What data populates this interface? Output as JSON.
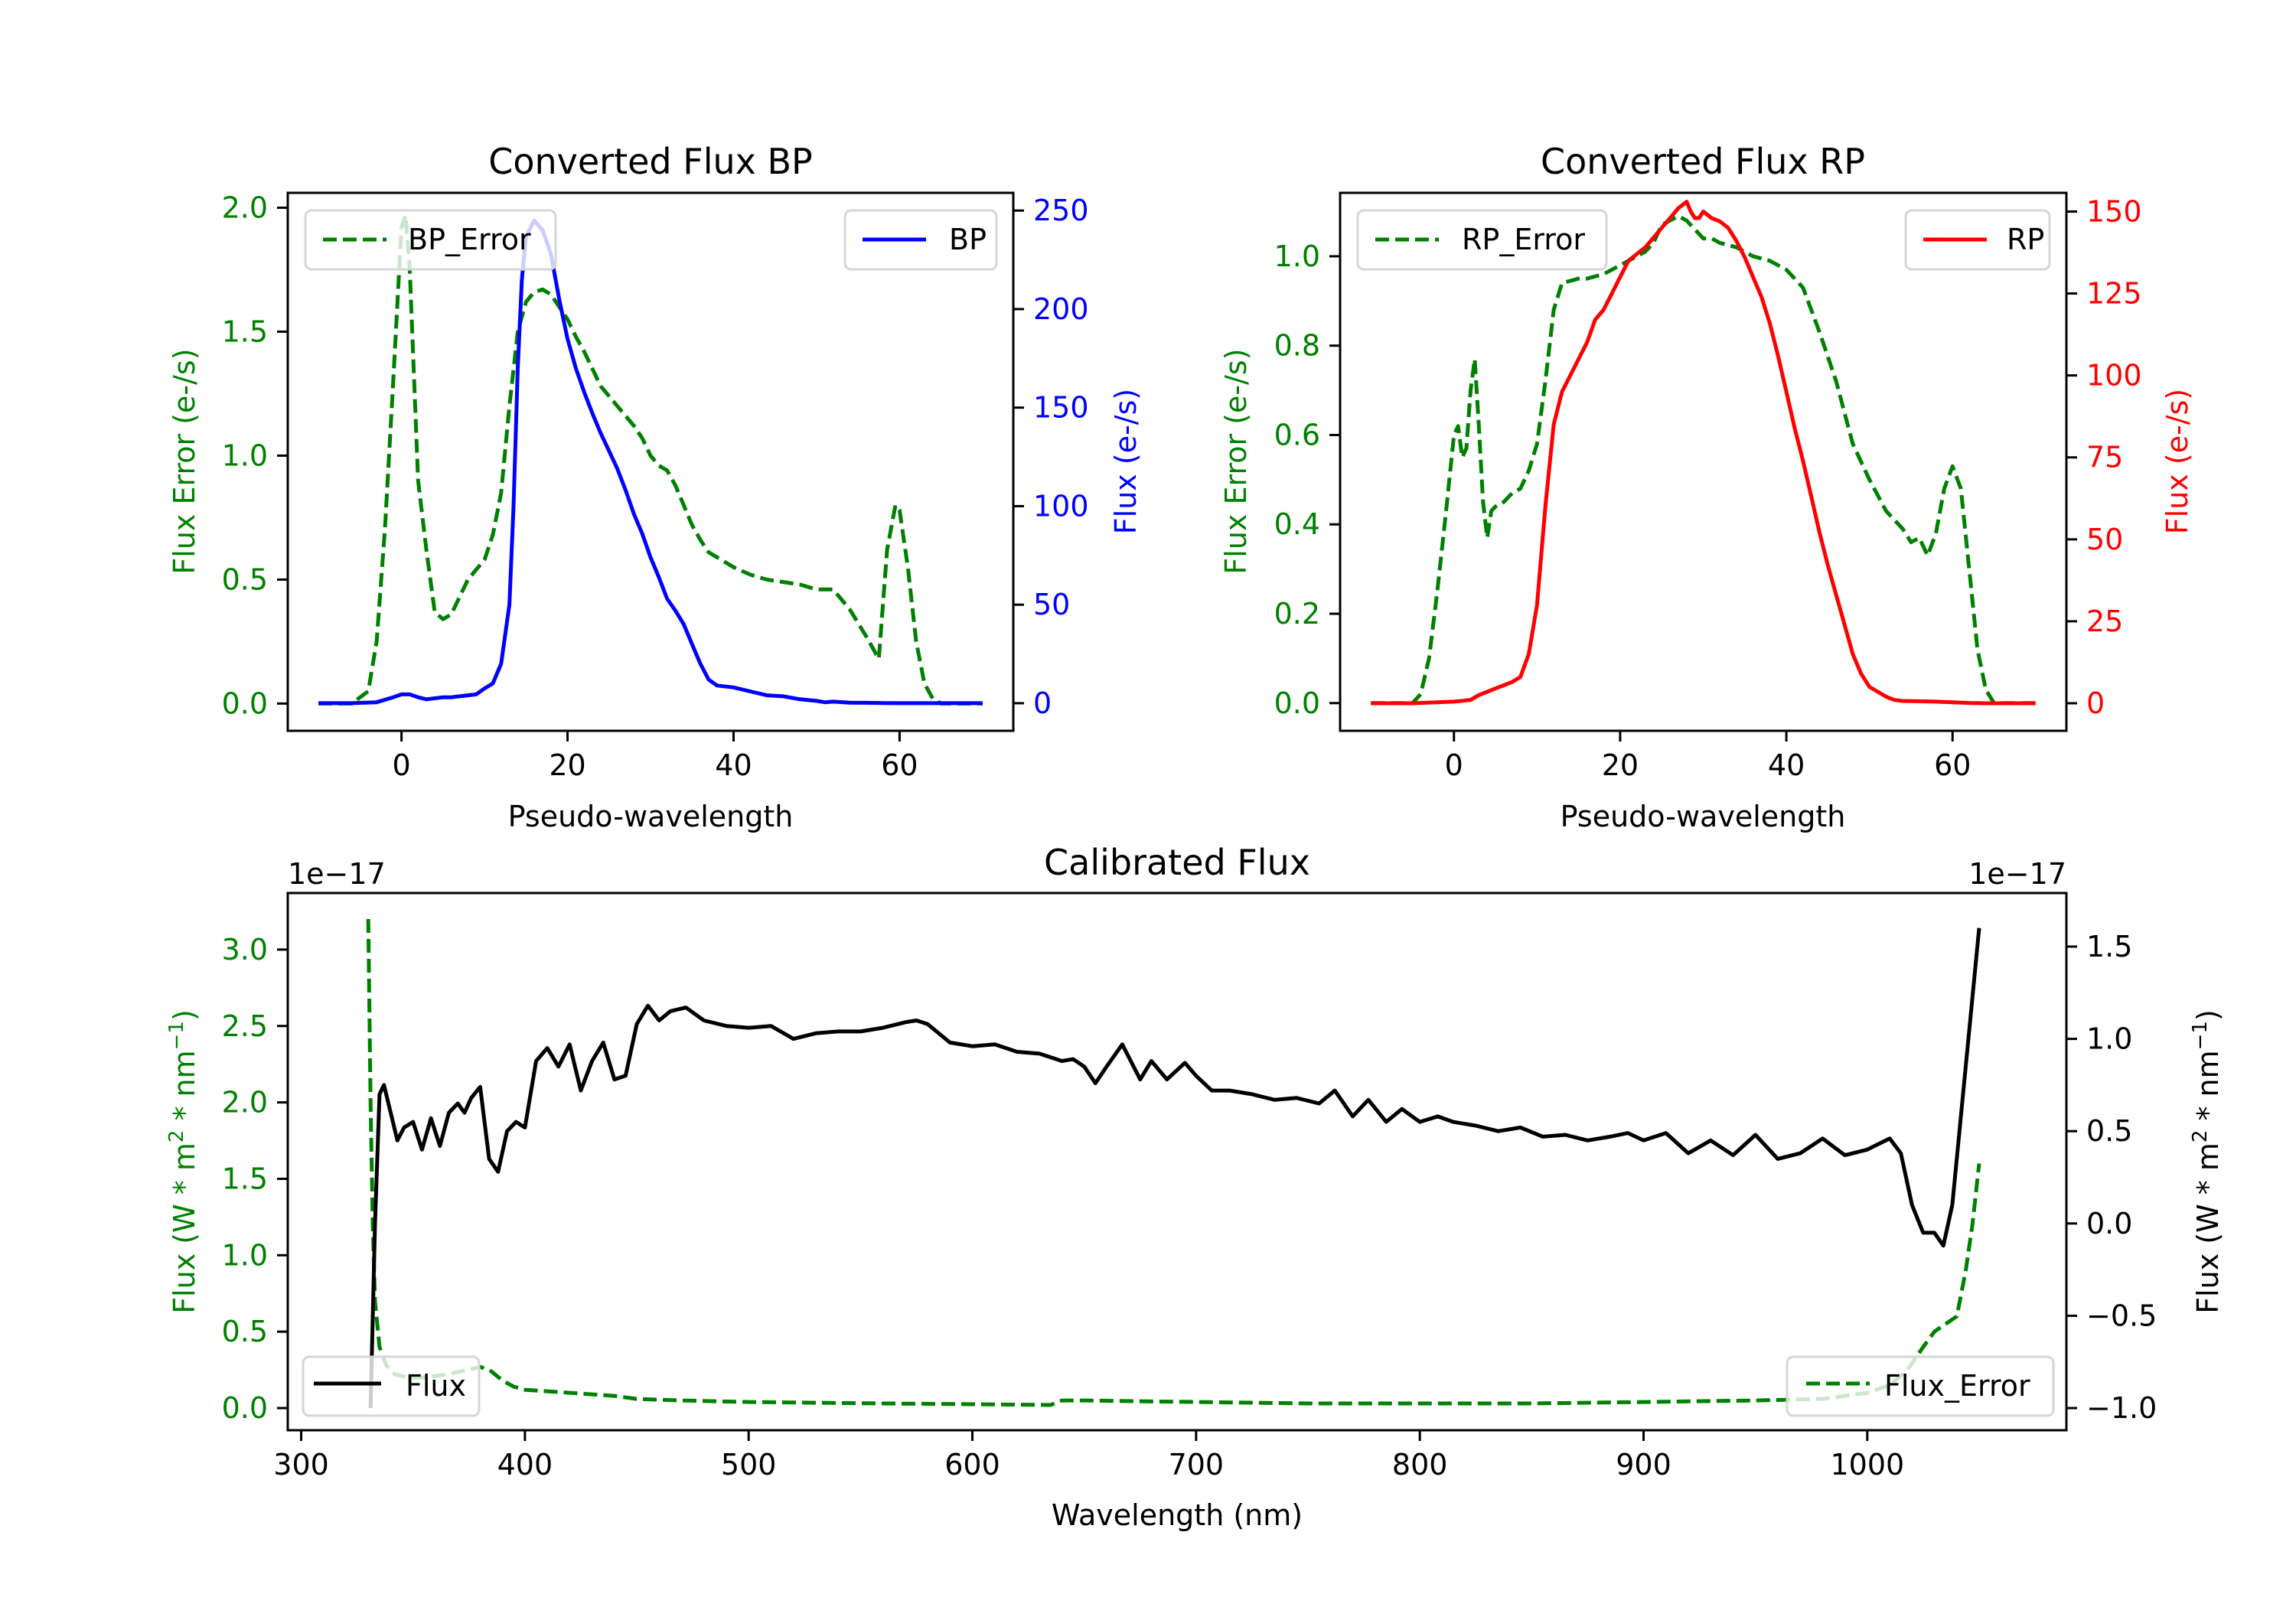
{
  "chart_data": [
    {
      "id": "bp",
      "type": "line",
      "title": "Converted Flux BP",
      "xlabel": "Pseudo-wavelength",
      "ylabel_left": "Flux Error (e-/s)",
      "ylabel_right": "Flux (e-/s)",
      "xlim": [
        -13.7,
        73.7
      ],
      "ylim_left": [
        -0.11,
        2.06
      ],
      "ylim_right": [
        -14,
        259
      ],
      "xticks": [
        0,
        20,
        40,
        60
      ],
      "xtick_labels": [
        "0",
        "20",
        "40",
        "60"
      ],
      "yticks_left": [
        0.0,
        0.5,
        1.0,
        1.5,
        2.0
      ],
      "ytick_labels_left": [
        "0.0",
        "0.5",
        "1.0",
        "1.5",
        "2.0"
      ],
      "yticks_right": [
        0,
        50,
        100,
        150,
        200,
        250
      ],
      "ytick_labels_right": [
        "0",
        "50",
        "100",
        "150",
        "200",
        "250"
      ],
      "left_axis_color": "#008000",
      "right_axis_color": "#0000ff",
      "legend_left": {
        "label": "BP_Error",
        "position": "upper-left"
      },
      "legend_right": {
        "label": "BP",
        "position": "upper-right"
      },
      "series": [
        {
          "name": "BP_Error",
          "axis": "left",
          "color": "#008000",
          "style": "dashed",
          "x": [
            -10,
            -6,
            -4,
            -3,
            -2,
            -1,
            0,
            0.5,
            1,
            2,
            3,
            4,
            5,
            6,
            7,
            8,
            9,
            10,
            11,
            12,
            13,
            14,
            15,
            16,
            17,
            18,
            19,
            20,
            21,
            22,
            23,
            24,
            25,
            26,
            27,
            28,
            29,
            30,
            31,
            32,
            33,
            34,
            35,
            36,
            37,
            38,
            40,
            42,
            44,
            46,
            48,
            50,
            52,
            54,
            56,
            57.5,
            58.5,
            59.5,
            60,
            61,
            62,
            63,
            64,
            65,
            67,
            70
          ],
          "y": [
            0.0,
            0.0,
            0.05,
            0.25,
            0.7,
            1.3,
            1.92,
            1.97,
            1.75,
            0.9,
            0.62,
            0.37,
            0.34,
            0.36,
            0.43,
            0.5,
            0.54,
            0.58,
            0.68,
            0.85,
            1.2,
            1.5,
            1.62,
            1.66,
            1.67,
            1.65,
            1.6,
            1.55,
            1.48,
            1.42,
            1.35,
            1.28,
            1.24,
            1.2,
            1.16,
            1.12,
            1.07,
            1.0,
            0.96,
            0.94,
            0.88,
            0.8,
            0.72,
            0.66,
            0.61,
            0.59,
            0.55,
            0.52,
            0.5,
            0.49,
            0.48,
            0.46,
            0.46,
            0.38,
            0.27,
            0.18,
            0.62,
            0.8,
            0.78,
            0.55,
            0.25,
            0.08,
            0.02,
            0.0,
            0.0,
            0.0
          ]
        },
        {
          "name": "BP",
          "axis": "right",
          "color": "#0000ff",
          "style": "solid",
          "x": [
            -10,
            -6,
            -3,
            -1,
            0,
            1,
            2,
            3,
            4,
            5,
            6,
            7,
            8,
            9,
            10,
            11,
            12,
            13,
            13.5,
            14,
            14.5,
            15,
            16,
            17,
            18,
            19,
            20,
            21,
            22,
            23,
            24,
            25,
            26,
            27,
            28,
            29,
            30,
            31,
            32,
            33,
            34,
            35,
            36,
            37,
            38,
            40,
            42,
            44,
            46,
            48,
            50,
            51,
            52,
            54,
            56,
            58,
            60,
            62,
            64,
            66,
            70
          ],
          "y": [
            0,
            0,
            0.5,
            3,
            4.5,
            4.5,
            3,
            2,
            2.5,
            3,
            3,
            3.5,
            4,
            4.5,
            7.5,
            10,
            20,
            50,
            100,
            170,
            215,
            237,
            245,
            240,
            228,
            205,
            185,
            170,
            158,
            147,
            137,
            128,
            119,
            108,
            96,
            86,
            74,
            64,
            53,
            47,
            40,
            30,
            20,
            12,
            9,
            8,
            6,
            4,
            3.5,
            2,
            1.2,
            0.5,
            0.8,
            0.3,
            0.2,
            0.1,
            0,
            0,
            0,
            0,
            0
          ]
        }
      ]
    },
    {
      "id": "rp",
      "type": "line",
      "title": "Converted Flux RP",
      "xlabel": "Pseudo-wavelength",
      "ylabel_left": "Flux Error (e-/s)",
      "ylabel_right": "Flux (e-/s)",
      "xlim": [
        -13.7,
        73.7
      ],
      "ylim_left": [
        -0.062,
        1.142
      ],
      "ylim_right": [
        -8.4,
        155.7
      ],
      "xticks": [
        0,
        20,
        40,
        60
      ],
      "xtick_labels": [
        "0",
        "20",
        "40",
        "60"
      ],
      "yticks_left": [
        0.0,
        0.2,
        0.4,
        0.6,
        0.8,
        1.0
      ],
      "ytick_labels_left": [
        "0.0",
        "0.2",
        "0.4",
        "0.6",
        "0.8",
        "1.0"
      ],
      "yticks_right": [
        0,
        25,
        50,
        75,
        100,
        125,
        150
      ],
      "ytick_labels_right": [
        "0",
        "25",
        "50",
        "75",
        "100",
        "125",
        "150"
      ],
      "left_axis_color": "#008000",
      "right_axis_color": "#ff0000",
      "legend_left": {
        "label": "RP_Error",
        "position": "upper-left"
      },
      "legend_right": {
        "label": "RP",
        "position": "upper-right"
      },
      "series": [
        {
          "name": "RP_Error",
          "axis": "left",
          "color": "#008000",
          "style": "dashed",
          "x": [
            -10,
            -5,
            -4,
            -3,
            -2,
            -1,
            0,
            0.5,
            1,
            1.5,
            2,
            2.5,
            3,
            3.5,
            4,
            4.5,
            5,
            6,
            7,
            8,
            9,
            10,
            11,
            12,
            13,
            14,
            15,
            16,
            17,
            18,
            19,
            20,
            21,
            22,
            23,
            24,
            25,
            26,
            27,
            28,
            29,
            30,
            31,
            32,
            34,
            36,
            38,
            40,
            42,
            44,
            46,
            48,
            50,
            52,
            54,
            55,
            56,
            57,
            58,
            59,
            60,
            61,
            62,
            63,
            64,
            65,
            67,
            70
          ],
          "y": [
            0.0,
            0.0,
            0.02,
            0.1,
            0.25,
            0.42,
            0.6,
            0.62,
            0.55,
            0.57,
            0.7,
            0.77,
            0.62,
            0.45,
            0.37,
            0.43,
            0.44,
            0.45,
            0.47,
            0.48,
            0.52,
            0.58,
            0.72,
            0.88,
            0.94,
            0.945,
            0.95,
            0.95,
            0.955,
            0.96,
            0.97,
            0.98,
            0.99,
            1.0,
            1.01,
            1.03,
            1.07,
            1.08,
            1.09,
            1.08,
            1.06,
            1.04,
            1.04,
            1.03,
            1.02,
            1.0,
            0.99,
            0.97,
            0.93,
            0.83,
            0.72,
            0.58,
            0.5,
            0.43,
            0.39,
            0.36,
            0.37,
            0.33,
            0.38,
            0.48,
            0.53,
            0.48,
            0.3,
            0.12,
            0.03,
            0.0,
            0.0,
            0.0
          ]
        },
        {
          "name": "RP",
          "axis": "right",
          "color": "#ff0000",
          "style": "solid",
          "x": [
            -10,
            -5,
            0,
            2,
            3,
            4,
            5,
            6,
            7,
            8,
            9,
            10,
            11,
            12,
            13,
            14,
            15,
            16,
            17,
            18,
            19,
            20,
            21,
            22,
            23,
            24,
            25,
            26,
            27,
            28,
            28.5,
            29,
            29.5,
            30,
            31,
            32,
            33,
            34,
            35,
            36,
            37,
            38,
            39,
            40,
            41,
            42,
            43,
            44,
            45,
            46,
            47,
            48,
            49,
            50,
            51,
            52,
            53,
            54,
            56,
            58,
            60,
            62,
            64,
            66,
            70
          ],
          "y": [
            0,
            0,
            0.5,
            1,
            2.5,
            3.5,
            4.5,
            5.5,
            6.5,
            8,
            15,
            30,
            60,
            85,
            95,
            100,
            105,
            110,
            117,
            120,
            125,
            130,
            135,
            137,
            139,
            142,
            145,
            148,
            151,
            153,
            150,
            148,
            148,
            150,
            148,
            147,
            145,
            141,
            136,
            130,
            124,
            116,
            106,
            95,
            84,
            74,
            63,
            52,
            42,
            33,
            24,
            15,
            9,
            5,
            3.5,
            2,
            1,
            0.7,
            0.6,
            0.5,
            0.3,
            0.1,
            0,
            0,
            0
          ]
        }
      ]
    },
    {
      "id": "calibrated",
      "type": "line",
      "title": "Calibrated Flux",
      "xlabel": "Wavelength (nm)",
      "ylabel_left": "Flux (W * m^2 * nm^-1)",
      "ylabel_right": "Flux (W * m^2 * nm^-1)",
      "ylabel_left_parts": [
        "Flux (W * m",
        "2",
        " * nm",
        "−1",
        ")"
      ],
      "ylabel_right_parts": [
        "Flux (W * m",
        "2",
        " * nm",
        "−1",
        ")"
      ],
      "offset_text_left": "1e−17",
      "offset_text_right": "1e−17",
      "xlim": [
        294,
        1089
      ],
      "ylim_left": [
        -0.145,
        3.37
      ],
      "ylim_right": [
        -1.12,
        1.79
      ],
      "xticks": [
        300,
        400,
        500,
        600,
        700,
        800,
        900,
        1000
      ],
      "xtick_labels": [
        "300",
        "400",
        "500",
        "600",
        "700",
        "800",
        "900",
        "1000"
      ],
      "yticks_left": [
        0.0,
        0.5,
        1.0,
        1.5,
        2.0,
        2.5,
        3.0
      ],
      "ytick_labels_left": [
        "0.0",
        "0.5",
        "1.0",
        "1.5",
        "2.0",
        "2.5",
        "3.0"
      ],
      "yticks_right": [
        -1.0,
        -0.5,
        0.0,
        0.5,
        1.0,
        1.5
      ],
      "ytick_labels_right": [
        "−1.0",
        "−0.5",
        "0.0",
        "0.5",
        "1.0",
        "1.5"
      ],
      "left_axis_color": "#008000",
      "right_axis_color": "#000000",
      "legend_left": {
        "label": "Flux",
        "position": "lower-left"
      },
      "legend_right": {
        "label": "Flux_Error",
        "position": "lower-right"
      },
      "series": [
        {
          "name": "Flux_Error",
          "axis": "left",
          "color": "#008000",
          "style": "dashed",
          "x": [
            330,
            331,
            332,
            333,
            335,
            338,
            342,
            348,
            355,
            365,
            375,
            380,
            385,
            390,
            395,
            400,
            410,
            420,
            430,
            440,
            450,
            470,
            500,
            530,
            560,
            600,
            635,
            640,
            650,
            700,
            750,
            800,
            850,
            900,
            950,
            980,
            1000,
            1010,
            1018,
            1025,
            1030,
            1035,
            1040,
            1044,
            1047,
            1050
          ],
          "y": [
            3.2,
            2.0,
            1.2,
            0.7,
            0.4,
            0.28,
            0.22,
            0.2,
            0.2,
            0.22,
            0.25,
            0.27,
            0.24,
            0.18,
            0.14,
            0.12,
            0.11,
            0.1,
            0.09,
            0.08,
            0.06,
            0.05,
            0.04,
            0.035,
            0.03,
            0.025,
            0.02,
            0.05,
            0.05,
            0.04,
            0.03,
            0.03,
            0.03,
            0.04,
            0.05,
            0.06,
            0.1,
            0.15,
            0.25,
            0.4,
            0.5,
            0.55,
            0.6,
            0.9,
            1.2,
            1.6
          ]
        },
        {
          "name": "Flux",
          "axis": "right",
          "color": "#000000",
          "style": "solid",
          "x": [
            331,
            333,
            335,
            337,
            340,
            343,
            346,
            350,
            354,
            358,
            362,
            366,
            370,
            373,
            376,
            380,
            384,
            388,
            392,
            396,
            400,
            405,
            410,
            415,
            420,
            425,
            430,
            435,
            440,
            445,
            450,
            455,
            460,
            465,
            472,
            480,
            490,
            500,
            510,
            520,
            530,
            540,
            550,
            560,
            570,
            575,
            580,
            590,
            600,
            610,
            620,
            630,
            640,
            645,
            650,
            655,
            660,
            667,
            675,
            680,
            687,
            695,
            700,
            707,
            715,
            725,
            735,
            745,
            755,
            762,
            770,
            777,
            785,
            792,
            800,
            808,
            815,
            825,
            835,
            845,
            855,
            865,
            875,
            885,
            893,
            900,
            910,
            920,
            930,
            940,
            950,
            960,
            970,
            980,
            990,
            1000,
            1010,
            1015,
            1020,
            1025,
            1030,
            1034,
            1038,
            1042,
            1046,
            1050
          ],
          "y": [
            -1.0,
            0.0,
            0.7,
            0.75,
            0.6,
            0.45,
            0.52,
            0.55,
            0.4,
            0.57,
            0.42,
            0.6,
            0.65,
            0.6,
            0.68,
            0.74,
            0.35,
            0.28,
            0.5,
            0.55,
            0.52,
            0.88,
            0.95,
            0.85,
            0.97,
            0.72,
            0.88,
            0.98,
            0.78,
            0.8,
            1.08,
            1.18,
            1.1,
            1.15,
            1.17,
            1.1,
            1.07,
            1.06,
            1.07,
            1.0,
            1.03,
            1.04,
            1.04,
            1.06,
            1.09,
            1.1,
            1.08,
            0.98,
            0.96,
            0.97,
            0.93,
            0.92,
            0.88,
            0.89,
            0.85,
            0.76,
            0.85,
            0.97,
            0.78,
            0.88,
            0.78,
            0.87,
            0.8,
            0.72,
            0.72,
            0.7,
            0.67,
            0.68,
            0.65,
            0.72,
            0.58,
            0.67,
            0.55,
            0.62,
            0.55,
            0.58,
            0.55,
            0.53,
            0.5,
            0.52,
            0.47,
            0.48,
            0.45,
            0.47,
            0.49,
            0.45,
            0.49,
            0.38,
            0.45,
            0.37,
            0.48,
            0.35,
            0.38,
            0.46,
            0.37,
            0.4,
            0.46,
            0.38,
            0.1,
            -0.05,
            -0.05,
            -0.12,
            0.1,
            0.6,
            1.1,
            1.6
          ]
        }
      ]
    }
  ]
}
